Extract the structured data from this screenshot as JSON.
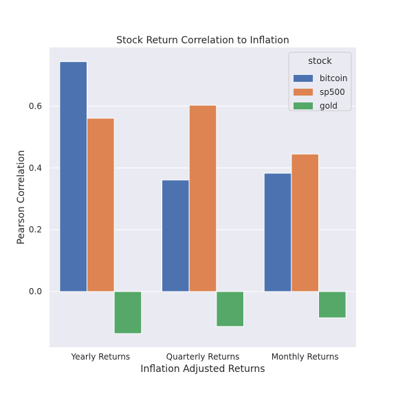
{
  "chart_data": {
    "type": "bar",
    "title": "Stock Return Correlation to Inflation",
    "xlabel": "Inflation Adjusted Returns",
    "ylabel": "Pearson Correlation",
    "categories": [
      "Yearly Returns",
      "Quarterly Returns",
      "Monthly Returns"
    ],
    "series": [
      {
        "name": "bitcoin",
        "values": [
          0.744,
          0.361,
          0.383
        ],
        "color": "#4c72b0"
      },
      {
        "name": "sp500",
        "values": [
          0.561,
          0.603,
          0.445
        ],
        "color": "#dd8452"
      },
      {
        "name": "gold",
        "values": [
          -0.136,
          -0.113,
          -0.085
        ],
        "color": "#55a868"
      }
    ],
    "ylim": [
      -0.18,
      0.79
    ],
    "yticks": [
      0.0,
      0.2,
      0.4,
      0.6
    ],
    "ytick_labels": [
      "0.0",
      "0.2",
      "0.4",
      "0.6"
    ],
    "legend_title": "stock",
    "legend_position": "top-right",
    "grid": true,
    "background": "#eaeaf2"
  }
}
